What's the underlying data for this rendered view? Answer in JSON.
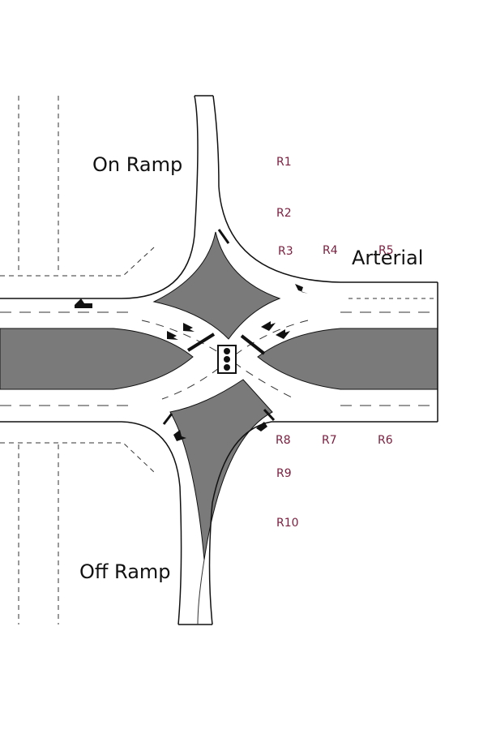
{
  "colors": {
    "median": "#7a7a7a",
    "road_edge": "#111111",
    "lane_line": "#333333",
    "ref_label": "#7b2040"
  },
  "labels": {
    "on_ramp": "On Ramp",
    "off_ramp": "Off Ramp",
    "arterial": "Arterial"
  },
  "reference_points": [
    "R1",
    "R2",
    "R3",
    "R4",
    "R5",
    "R6",
    "R7",
    "R8",
    "R9",
    "R10"
  ],
  "icons": {
    "signal": "traffic-signal-icon",
    "arrow": "direction-arrow-icon",
    "vehicle": "vehicle-icon"
  }
}
